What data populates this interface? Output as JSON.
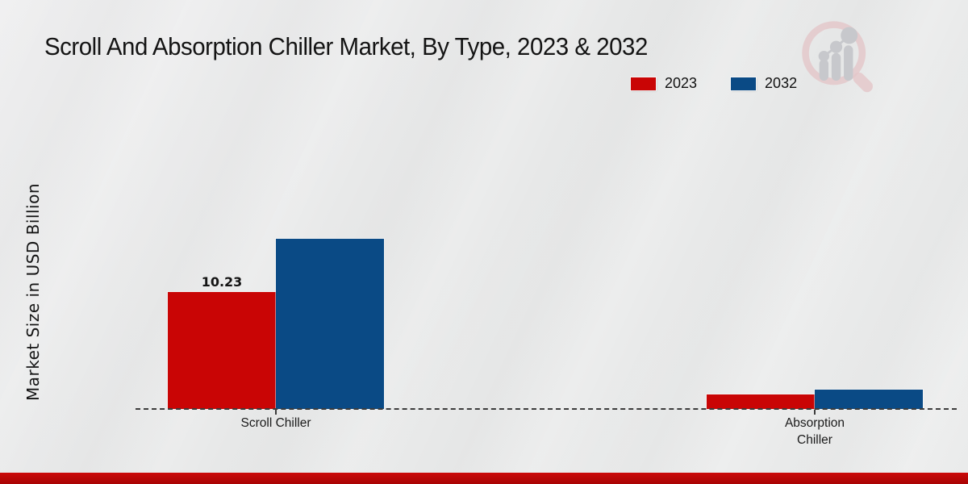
{
  "header": {
    "title": "Scroll And Absorption Chiller Market, By Type, 2023 & 2032"
  },
  "legend": {
    "position": "top-right",
    "items": [
      {
        "label": "2023",
        "color": "#c90505"
      },
      {
        "label": "2032",
        "color": "#0a4a85"
      }
    ]
  },
  "chart_data": {
    "type": "bar",
    "title": "Scroll And Absorption Chiller Market, By Type, 2023 & 2032",
    "categories": [
      "Scroll Chiller",
      "Absorption Chiller"
    ],
    "series": [
      {
        "name": "2023",
        "color": "#c90505",
        "values": [
          10.23,
          1.25
        ]
      },
      {
        "name": "2032",
        "color": "#0a4a85",
        "values": [
          14.9,
          1.7
        ]
      }
    ],
    "xlabel": "",
    "ylabel": "Market Size in USD Billion",
    "ylim": [
      0,
      16
    ],
    "grid": false,
    "y_axis_ticks_visible": false,
    "baseline_style": "dashed",
    "legend_position": "top-right",
    "data_labels": [
      {
        "series_index": 0,
        "category_index": 0,
        "text": "10.23"
      }
    ]
  },
  "branding": {
    "logo_icon": "magnifier-bar-chart-logo",
    "footer_band_color": "#b80606"
  }
}
